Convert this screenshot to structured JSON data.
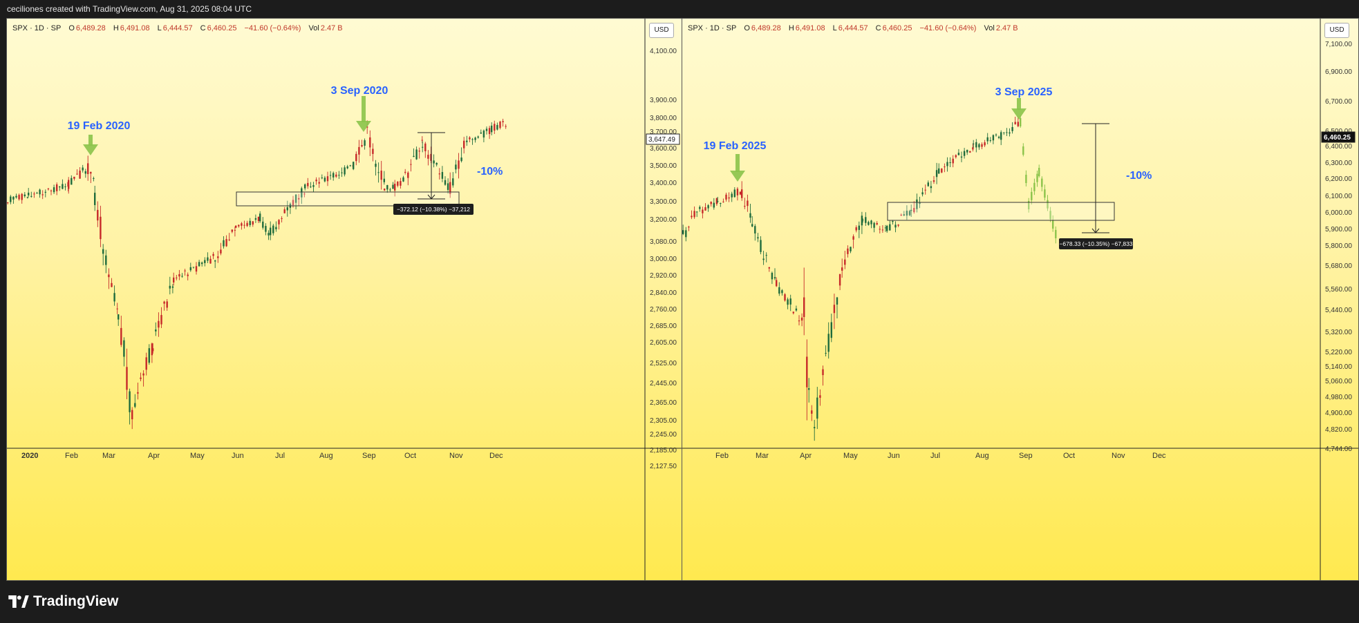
{
  "caption": "ceciliones created with TradingView.com, Aug 31, 2025 08:04 UTC",
  "brand": "TradingView",
  "brand_icon": "tradingview-logo-icon",
  "colors": {
    "up": "#1e6b3c",
    "down": "#c62828",
    "projection": "#8bc34a",
    "annotation": "#2962ff"
  },
  "panels": [
    {
      "symbol": "SPX · 1D · SP",
      "ohlc": {
        "o_label": "O",
        "o": "6,489.28",
        "h_label": "H",
        "h": "6,491.08",
        "l_label": "L",
        "l": "6,444.57",
        "c_label": "C",
        "c": "6,460.25",
        "change": "−41.60 (−0.64%)",
        "vol_label": "Vol",
        "vol": "2.47 B"
      },
      "currency": "USD",
      "price_ticks": [
        "4,100.00",
        "3,900.00",
        "3,800.00",
        "3,700.00",
        "3,600.00",
        "3,500.00",
        "3,400.00",
        "3,300.00",
        "3,200.00",
        "3,080.00",
        "3,000.00",
        "2,920.00",
        "2,840.00",
        "2,760.00",
        "2,685.00",
        "2,605.00",
        "2,525.00",
        "2,445.00",
        "2,365.00",
        "2,305.00",
        "2,245.00",
        "2,185.00",
        "2,127.50"
      ],
      "last_price": "3,647.49",
      "time_ticks": [
        "2020",
        "Feb",
        "Mar",
        "Apr",
        "May",
        "Jun",
        "Jul",
        "Aug",
        "Sep",
        "Oct",
        "Nov",
        "Dec"
      ],
      "annotations": {
        "peak1": "19 Feb 2020",
        "peak2": "3 Sep 2020",
        "drop": "-10%",
        "measure": "−372.12 (−10.38%) −37,212"
      }
    },
    {
      "symbol": "SPX · 1D · SP",
      "ohlc": {
        "o_label": "O",
        "o": "6,489.28",
        "h_label": "H",
        "h": "6,491.08",
        "l_label": "L",
        "l": "6,444.57",
        "c_label": "C",
        "c": "6,460.25",
        "change": "−41.60 (−0.64%)",
        "vol_label": "Vol",
        "vol": "2.47 B"
      },
      "currency": "USD",
      "price_ticks": [
        "7,100.00",
        "6,900.00",
        "6,700.00",
        "6,500.00",
        "6,400.00",
        "6,300.00",
        "6,200.00",
        "6,100.00",
        "6,000.00",
        "5,900.00",
        "5,800.00",
        "5,680.00",
        "5,560.00",
        "5,440.00",
        "5,320.00",
        "5,220.00",
        "5,140.00",
        "5,060.00",
        "4,980.00",
        "4,900.00",
        "4,820.00",
        "4,744.00"
      ],
      "last_price": "6,460.25",
      "time_ticks": [
        "Feb",
        "Mar",
        "Apr",
        "May",
        "Jun",
        "Jul",
        "Aug",
        "Sep",
        "Oct",
        "Nov",
        "Dec"
      ],
      "annotations": {
        "peak1": "19 Feb 2025",
        "peak2": "3 Sep 2025",
        "drop": "-10%",
        "measure": "−678.33 (−10.35%) −67,833"
      }
    }
  ]
}
